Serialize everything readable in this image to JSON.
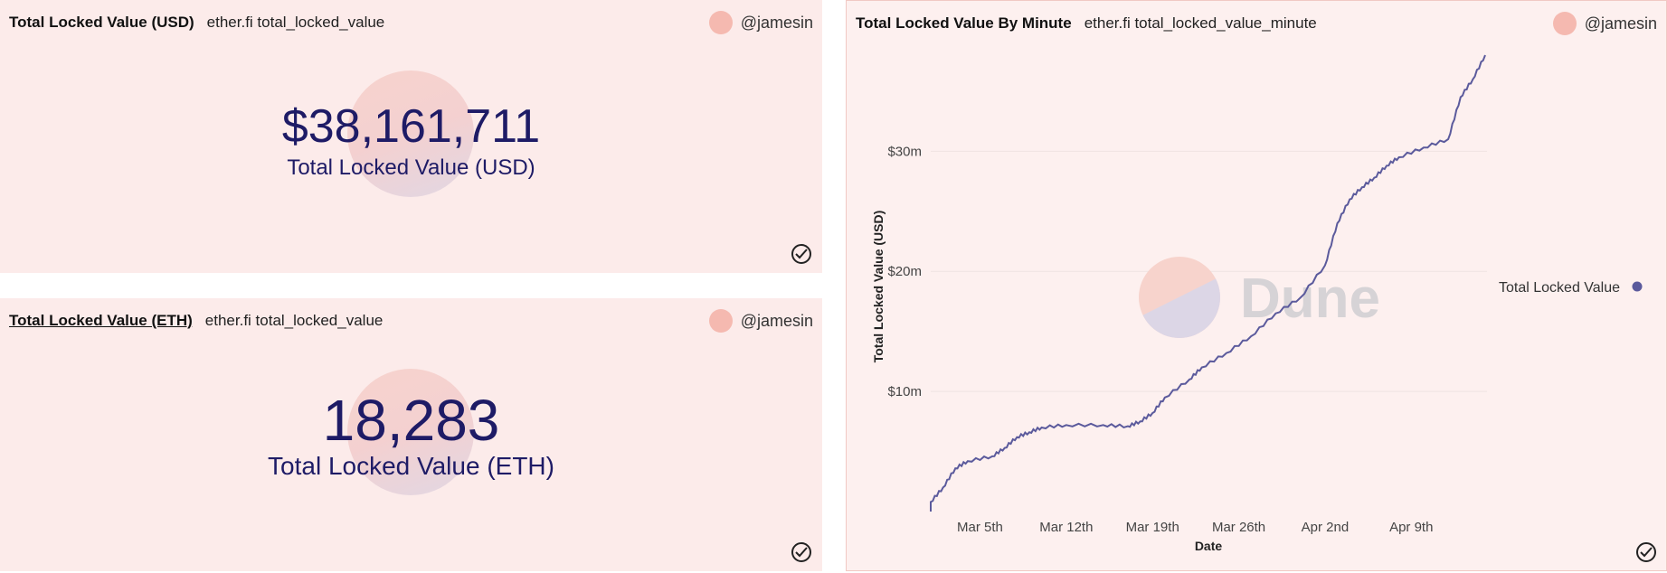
{
  "panels": {
    "usd": {
      "title": "Total Locked Value (USD)",
      "query": "ether.fi total_locked_value",
      "user": "@jamesin",
      "value": "$38,161,711",
      "label": "Total Locked Value (USD)"
    },
    "eth": {
      "title": "Total Locked Value (ETH)",
      "query": "ether.fi total_locked_value",
      "user": "@jamesin",
      "value": "18,283",
      "label": "Total Locked Value (ETH)"
    },
    "minute": {
      "title": "Total Locked Value By Minute",
      "query": "ether.fi total_locked_value_minute",
      "user": "@jamesin",
      "watermark": "Dune"
    }
  },
  "colors": {
    "panel_bg": "#fcebea",
    "value_text": "#1e1b66",
    "line": "#5b5a9c",
    "avatar": "#f5b9b0"
  },
  "icons": [
    "avatar-icon",
    "check-circle-icon"
  ],
  "chart_data": {
    "type": "line",
    "xlabel": "Date",
    "ylabel": "Total Locked Value (USD)",
    "x_tick_labels": [
      "Mar 5th",
      "Mar 12th",
      "Mar 19th",
      "Mar 26th",
      "Apr 2nd",
      "Apr 9th"
    ],
    "y_tick_labels": [
      "$10m",
      "$20m",
      "$30m"
    ],
    "y_ticks": [
      10,
      20,
      30
    ],
    "ylim": [
      0,
      38
    ],
    "xlim": [
      "2023-02-29",
      "2023-04-15"
    ],
    "grid": true,
    "legend": {
      "position": "right",
      "entries": [
        "Total Locked Value"
      ]
    },
    "series": [
      {
        "name": "Total Locked Value",
        "x": [
          "2023-02-29",
          "2023-03-01",
          "2023-03-02",
          "2023-03-03",
          "2023-03-04",
          "2023-03-06",
          "2023-03-07",
          "2023-03-08",
          "2023-03-09",
          "2023-03-10",
          "2023-03-12",
          "2023-03-15",
          "2023-03-17",
          "2023-03-18",
          "2023-03-19",
          "2023-03-20",
          "2023-03-22",
          "2023-03-23",
          "2023-03-25",
          "2023-03-27",
          "2023-03-29",
          "2023-03-31",
          "2023-04-02",
          "2023-04-03",
          "2023-04-04",
          "2023-04-05",
          "2023-04-06",
          "2023-04-07",
          "2023-04-08",
          "2023-04-10",
          "2023-04-12",
          "2023-04-13",
          "2023-04-14",
          "2023-04-15"
        ],
        "values": [
          0.0,
          0.8,
          2.0,
          3.6,
          4.2,
          4.6,
          5.3,
          6.2,
          6.6,
          7.0,
          7.2,
          7.2,
          7.1,
          7.5,
          8.2,
          9.5,
          11.0,
          12.0,
          13.2,
          14.6,
          16.5,
          17.8,
          20.5,
          24.0,
          26.0,
          27.0,
          27.8,
          28.8,
          29.5,
          30.3,
          31.0,
          34.5,
          36.0,
          38.0
        ]
      }
    ]
  }
}
